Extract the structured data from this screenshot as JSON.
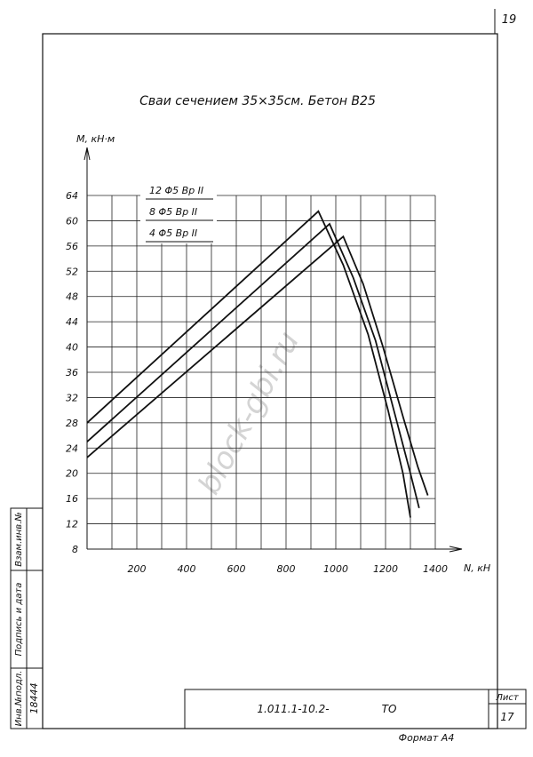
{
  "chart_data": {
    "type": "line",
    "title": "Сваи сечением 35×35см. Бетон В25",
    "x_label": "N, кН",
    "y_label": "M, кН·м",
    "xlim": [
      0,
      1450
    ],
    "ylim": [
      8,
      66
    ],
    "xticks": [
      200,
      400,
      600,
      800,
      1000,
      1200,
      1400
    ],
    "xgrid": [
      100,
      200,
      300,
      400,
      500,
      600,
      700,
      800,
      900,
      1000,
      1100,
      1200,
      1300,
      1400
    ],
    "yticks": [
      8,
      12,
      16,
      20,
      24,
      28,
      32,
      36,
      40,
      44,
      48,
      52,
      56,
      60,
      64
    ],
    "grid": true,
    "series": [
      {
        "name": "12 Φ5 Вр II",
        "color": "#111",
        "x": [
          0,
          930,
          1030,
          1130,
          1210,
          1270,
          1300
        ],
        "values": [
          28,
          61.5,
          53,
          42,
          30,
          20,
          13
        ]
      },
      {
        "name": "8 Φ5 Вр II",
        "color": "#111",
        "x": [
          0,
          975,
          1070,
          1160,
          1240,
          1300,
          1335
        ],
        "values": [
          25,
          59.5,
          51,
          41,
          29,
          20,
          14.5
        ]
      },
      {
        "name": "4 Φ5 Вр II",
        "color": "#111",
        "x": [
          0,
          1030,
          1110,
          1190,
          1270,
          1330,
          1370
        ],
        "values": [
          22.5,
          57.5,
          50,
          40,
          29,
          21,
          16.5
        ]
      }
    ]
  },
  "frame": {
    "sheet_number": "19",
    "document_code": "1.011.1-10.2-",
    "document_type": "ТО",
    "sheet_label": "Лист",
    "sheet_value": "17",
    "format": "Формат А4",
    "side": [
      "Взам.инв.№",
      "Подпись и дата",
      "Инв.№подл."
    ],
    "inventory_number": "18444",
    "watermark": "block-gbi.ru"
  }
}
